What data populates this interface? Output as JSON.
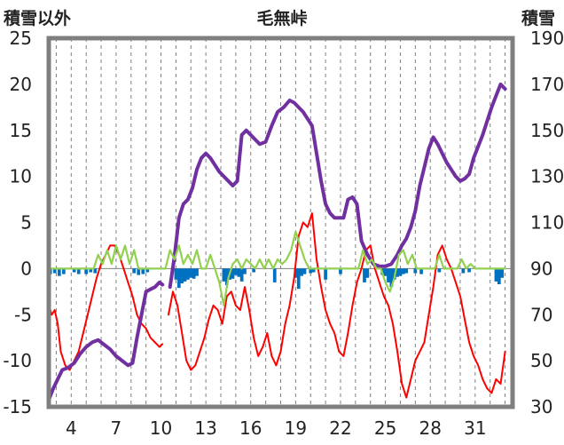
{
  "chart_data": {
    "type": "line",
    "title": "毛無峠",
    "left_axis_label": "積雪以外",
    "right_axis_label": "積雪",
    "ylim_left": [
      -15,
      25
    ],
    "ylim_right": [
      30,
      190
    ],
    "yticks_left": [
      "25",
      "20",
      "15",
      "10",
      "5",
      "0",
      "-5",
      "-10",
      "-15"
    ],
    "yticks_right": [
      "190",
      "170",
      "150",
      "130",
      "110",
      "90",
      "70",
      "50",
      "30"
    ],
    "xlim": [
      2.5,
      33.5
    ],
    "xticks": [
      4,
      7,
      10,
      13,
      16,
      19,
      22,
      25,
      28,
      31
    ],
    "xtick_labels": [
      "4",
      "7",
      "10",
      "13",
      "16",
      "19",
      "22",
      "25",
      "28",
      "31"
    ],
    "colors": {
      "temperature": "#ff0000",
      "snow_depth": "#7030a0",
      "sunshine": "#92d050",
      "precipitation": "#0070c0",
      "frame": "#7f7f7f",
      "grid": "#808080"
    },
    "series": [
      {
        "key": "temperature",
        "axis": "left",
        "x": [
          2.5,
          2.7,
          2.9,
          3.1,
          3.3,
          3.6,
          3.9,
          4.2,
          4.5,
          4.8,
          5.1,
          5.4,
          5.7,
          6.0,
          6.3,
          6.6,
          6.9,
          7.2,
          7.5,
          7.8,
          8.1,
          8.4,
          8.7,
          9.0,
          9.3,
          9.6,
          9.9,
          10.1
        ],
        "y": [
          -4,
          -5,
          -4.5,
          -6,
          -9,
          -10.5,
          -11,
          -10,
          -9,
          -7,
          -5,
          -3,
          -1,
          0.5,
          1.5,
          2.5,
          2.5,
          1.5,
          0,
          -1.5,
          -3,
          -5,
          -6,
          -6.5,
          -7.5,
          -8,
          -8.5,
          -8.2
        ],
        "break_after": 10.1,
        "x2": [
          10.5,
          10.8,
          11.1,
          11.4,
          11.7,
          12.0,
          12.3,
          12.6,
          12.9,
          13.2,
          13.5,
          13.8,
          14.1,
          14.4,
          14.7,
          15.0,
          15.3,
          15.6,
          15.9,
          16.2,
          16.5,
          16.8,
          17.1,
          17.4,
          17.7,
          18.0,
          18.3,
          18.6,
          18.9,
          19.2,
          19.5,
          19.8,
          20.1,
          20.4,
          20.7,
          21.0,
          21.3,
          21.6,
          21.9,
          22.2,
          22.5,
          22.8,
          23.1,
          23.4,
          23.7,
          24.0,
          24.3,
          24.6,
          24.9,
          25.2,
          25.5,
          25.8,
          26.1,
          26.4,
          26.7,
          27.0,
          27.3,
          27.6,
          27.9,
          28.2,
          28.5,
          28.8,
          29.1,
          29.4,
          29.7,
          30.0,
          30.3,
          30.6,
          30.9,
          31.2,
          31.5,
          31.8,
          32.1,
          32.4,
          32.7,
          33.0
        ],
        "y2": [
          -5,
          -2.5,
          -4,
          -7,
          -10,
          -11,
          -10.5,
          -9,
          -7.5,
          -5.5,
          -4,
          -4.5,
          -6,
          -3,
          -2.5,
          -4,
          -4.5,
          -2,
          -4.5,
          -7.5,
          -9.5,
          -8.5,
          -7,
          -9.5,
          -10.5,
          -9,
          -6,
          -4,
          -1,
          3.5,
          5,
          4.5,
          6,
          1,
          -2,
          -4.5,
          -6,
          -7,
          -9,
          -9.5,
          -7,
          -4,
          -1.5,
          0,
          2,
          2.5,
          0,
          -1.5,
          -3,
          -4,
          -6,
          -9,
          -12.5,
          -14,
          -12,
          -10,
          -9,
          -8,
          -5,
          -2,
          1.5,
          2.5,
          1,
          0,
          -1.5,
          -3,
          -5.5,
          -8,
          -9.5,
          -10.5,
          -12,
          -13,
          -13.5,
          -12,
          -12.5,
          -9
        ]
      },
      {
        "key": "snow_depth",
        "axis": "right",
        "x": [
          2.5,
          2.8,
          3.1,
          3.4,
          3.8,
          4.2,
          4.6,
          5.0,
          5.4,
          5.8,
          6.2,
          6.6,
          7.0,
          7.4,
          7.8,
          8.1,
          8.4,
          8.7,
          9.0,
          9.3,
          9.6,
          9.9,
          10.1
        ],
        "y": [
          33,
          38,
          42,
          46,
          47,
          49,
          53,
          56,
          58,
          59,
          57,
          55,
          52,
          50,
          48,
          49,
          60,
          70,
          80,
          81,
          82,
          84,
          83
        ],
        "break_after": 10.1,
        "x2": [
          10.6,
          10.9,
          11.2,
          11.5,
          11.8,
          12.1,
          12.4,
          12.7,
          13.0,
          13.3,
          13.6,
          13.9,
          14.2,
          14.5,
          14.8,
          15.1,
          15.4,
          15.7,
          16.0,
          16.3,
          16.6,
          17.0,
          17.4,
          17.8,
          18.2,
          18.6,
          18.9,
          19.2,
          19.5,
          19.8,
          20.1,
          20.4,
          20.7,
          21.0,
          21.3,
          21.6,
          21.9,
          22.2,
          22.5,
          22.8,
          23.1,
          23.4,
          23.8,
          24.2,
          24.6,
          25.0,
          25.4,
          25.8,
          26.1,
          26.4,
          26.7,
          27.0,
          27.3,
          27.6,
          27.9,
          28.2,
          28.5,
          28.8,
          29.1,
          29.4,
          29.7,
          30.0,
          30.3,
          30.6,
          30.9,
          31.2,
          31.5,
          31.8,
          32.1,
          32.4,
          32.7,
          33.0
        ],
        "y2": [
          82,
          95,
          112,
          118,
          120,
          125,
          133,
          138,
          140,
          138,
          135,
          132,
          130,
          128,
          126,
          128,
          148,
          150,
          148,
          146,
          144,
          145,
          152,
          158,
          160,
          163,
          162,
          160,
          158,
          155,
          152,
          140,
          128,
          118,
          114,
          112,
          112,
          112,
          120,
          121,
          118,
          102,
          96,
          92,
          91,
          91,
          92,
          96,
          100,
          103,
          108,
          115,
          126,
          134,
          142,
          147,
          144,
          140,
          136,
          133,
          130,
          128,
          129,
          131,
          138,
          143,
          148,
          154,
          160,
          165,
          170,
          168
        ]
      },
      {
        "key": "sunshine",
        "axis": "left",
        "x": [
          2.5,
          3.0,
          3.5,
          4.0,
          4.5,
          5.0,
          5.5,
          5.8,
          6.1,
          6.4,
          6.7,
          7.0,
          7.3,
          7.6,
          7.9,
          8.2,
          8.5,
          8.8,
          9.1,
          9.4,
          9.7,
          10.0,
          10.3,
          10.6,
          10.9,
          11.2,
          11.5,
          11.8,
          12.1,
          12.4,
          12.7,
          13.0,
          13.3,
          13.6,
          13.9,
          14.2,
          14.5,
          14.8,
          15.1,
          15.4,
          15.7,
          16.0,
          16.3,
          16.6,
          16.9,
          17.2,
          17.5,
          17.8,
          18.1,
          18.4,
          18.7,
          19.0,
          19.3,
          19.6,
          19.9,
          20.2,
          20.5,
          20.8,
          21.1,
          21.4,
          21.7,
          22.0,
          22.3,
          22.6,
          22.9,
          23.2,
          23.5,
          23.8,
          24.1,
          24.4,
          24.7,
          25.0,
          25.3,
          25.6,
          25.9,
          26.2,
          26.5,
          26.8,
          27.1,
          27.4,
          27.7,
          28.0,
          28.3,
          28.6,
          28.9,
          29.2,
          29.5,
          29.8,
          30.1,
          30.4,
          30.7,
          31.0,
          31.3,
          31.6,
          31.9,
          32.2,
          32.5,
          32.8,
          33.0
        ],
        "y": [
          0,
          0,
          0,
          0,
          0,
          0,
          0,
          1.5,
          0.5,
          2,
          0.5,
          2.5,
          1,
          2.5,
          0.5,
          2,
          0,
          0,
          0,
          0,
          0,
          0,
          0,
          2,
          1,
          2.5,
          0.5,
          1.5,
          0.5,
          2,
          0,
          0,
          1.5,
          0,
          -1.5,
          -4,
          -1,
          0.5,
          1,
          0,
          1,
          0.5,
          0,
          1,
          0,
          1,
          0,
          1,
          0.5,
          1,
          2,
          4,
          2.5,
          1,
          0,
          0,
          0,
          0,
          0,
          0,
          0,
          0,
          0,
          0,
          0,
          0,
          2,
          0.5,
          1,
          0,
          0,
          -1.5,
          -2.5,
          -1,
          1.5,
          2,
          0.5,
          1.5,
          0,
          0,
          0,
          0,
          0,
          1.5,
          0,
          0,
          0,
          0,
          1,
          0,
          0.5,
          0,
          0,
          0,
          0,
          0,
          0,
          0,
          0
        ]
      }
    ],
    "precip_bars": {
      "x": [
        2.6,
        2.9,
        3.2,
        3.5,
        4.2,
        4.5,
        5.0,
        5.3,
        5.6,
        8.2,
        8.5,
        8.8,
        9.1,
        11.0,
        11.2,
        11.4,
        11.6,
        11.8,
        12.0,
        12.2,
        12.4,
        14.2,
        14.4,
        14.6,
        14.8,
        15.0,
        15.2,
        15.4,
        15.6,
        16.2,
        17.6,
        19.0,
        19.2,
        19.4,
        19.6,
        20.0,
        20.2,
        21.0,
        22.0,
        23.6,
        23.8,
        24.8,
        25.0,
        25.2,
        25.4,
        25.6,
        25.8,
        26.0,
        26.2,
        26.4,
        27.0,
        27.4,
        28.6,
        30.2,
        30.6,
        32.4,
        32.6,
        32.8
      ],
      "y": [
        -0.6,
        -0.5,
        -0.8,
        -0.6,
        -0.4,
        -0.6,
        -0.6,
        -0.4,
        -0.5,
        -0.5,
        -0.7,
        -0.6,
        -0.4,
        -1.2,
        -2.1,
        -1.6,
        -1.4,
        -1.2,
        -1.0,
        -1.1,
        -0.8,
        -1.4,
        -1.8,
        -1.2,
        -1.1,
        -0.7,
        -0.9,
        -1.4,
        -0.6,
        -0.4,
        -1.5,
        -1.0,
        -2.2,
        -0.8,
        -0.6,
        -0.5,
        -0.4,
        -1.2,
        -0.6,
        -1.5,
        -1.0,
        -0.7,
        -0.8,
        -1.5,
        -2.0,
        -1.2,
        -0.9,
        -0.8,
        -0.6,
        -0.5,
        -0.5,
        -0.6,
        -0.4,
        -0.5,
        -0.4,
        -1.4,
        -1.7,
        -1.0
      ]
    }
  }
}
